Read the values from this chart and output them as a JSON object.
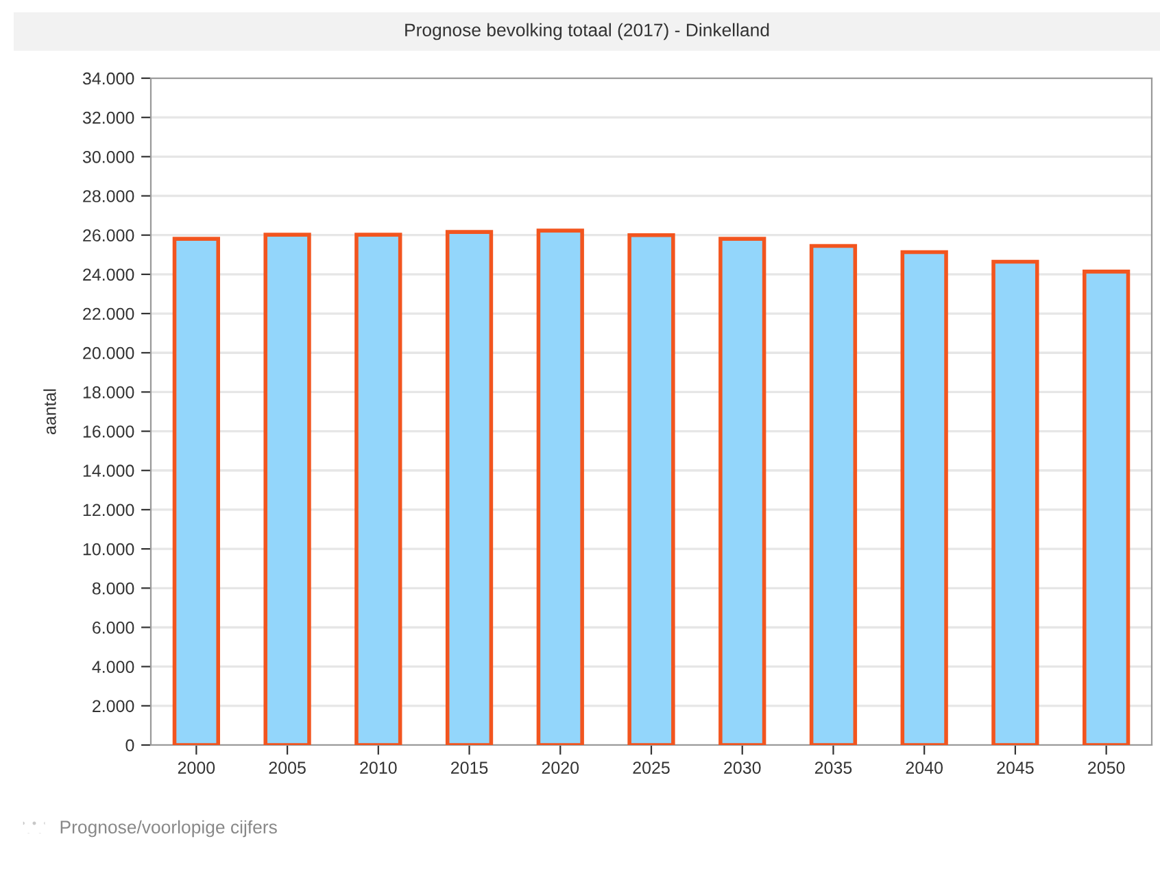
{
  "chart_data": {
    "type": "bar",
    "title": "Prognose bevolking totaal (2017) - Dinkelland",
    "ylabel": "aantal",
    "categories": [
      "2000",
      "2005",
      "2010",
      "2015",
      "2020",
      "2025",
      "2030",
      "2035",
      "2040",
      "2045",
      "2050"
    ],
    "series": [
      {
        "color": "#93d6fb",
        "values": [
          25810,
          26020,
          26020,
          26160,
          null,
          null,
          null,
          null,
          null,
          null,
          null
        ]
      },
      {
        "name": "Prognose/voorlopige cijfers",
        "color": "#93d6fb",
        "values": [
          null,
          null,
          null,
          null,
          26230,
          26000,
          25810,
          25450,
          25130,
          24640,
          24140
        ]
      }
    ],
    "ylim": [
      0,
      34000
    ],
    "yticks": [
      {
        "value": 0,
        "label": "0"
      },
      {
        "value": 2000,
        "label": "2.000"
      },
      {
        "value": 4000,
        "label": "4.000"
      },
      {
        "value": 6000,
        "label": "6.000"
      },
      {
        "value": 8000,
        "label": "8.000"
      },
      {
        "value": 10000,
        "label": "10.000"
      },
      {
        "value": 12000,
        "label": "12.000"
      },
      {
        "value": 14000,
        "label": "14.000"
      },
      {
        "value": 16000,
        "label": "16.000"
      },
      {
        "value": 18000,
        "label": "18.000"
      },
      {
        "value": 20000,
        "label": "20.000"
      },
      {
        "value": 22000,
        "label": "22.000"
      },
      {
        "value": 24000,
        "label": "24.000"
      },
      {
        "value": 26000,
        "label": "26.000"
      },
      {
        "value": 28000,
        "label": "28.000"
      },
      {
        "value": 30000,
        "label": "30.000"
      },
      {
        "value": 32000,
        "label": "32.000"
      },
      {
        "value": 34000,
        "label": "34.000"
      }
    ],
    "grid": "y",
    "legend": "bottom left"
  }
}
